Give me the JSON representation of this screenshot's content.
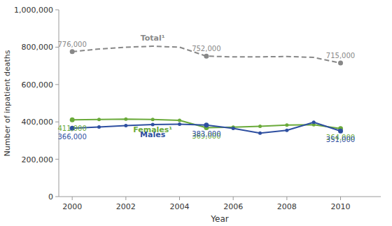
{
  "chart_data": {
    "type": "line",
    "x": [
      2000,
      2001,
      2002,
      2003,
      2004,
      2005,
      2006,
      2007,
      2008,
      2009,
      2010
    ],
    "series": [
      {
        "name": "Total¹",
        "color": "#888888",
        "line_style": "dashed",
        "values": [
          776000,
          790000,
          800000,
          805000,
          800000,
          752000,
          748000,
          748000,
          750000,
          745000,
          715000
        ],
        "value_labels": [
          "776,000",
          null,
          null,
          null,
          null,
          "752,000",
          null,
          null,
          null,
          null,
          "715,000"
        ]
      },
      {
        "name": "Females¹",
        "color": "#6aaa3a",
        "line_style": "solid",
        "marker": "circle",
        "values": [
          411000,
          413000,
          415000,
          413000,
          408000,
          369000,
          372000,
          376000,
          383000,
          385000,
          364000
        ],
        "value_labels": [
          "411,000",
          null,
          null,
          null,
          null,
          "369,000",
          null,
          null,
          null,
          null,
          "364,000"
        ]
      },
      {
        "name": "Males",
        "color": "#2e4fa0",
        "line_style": "solid",
        "marker": "circle",
        "values": [
          366000,
          373000,
          380000,
          386000,
          388000,
          383000,
          365000,
          340000,
          355000,
          398000,
          351000
        ],
        "value_labels": [
          "366,000",
          null,
          null,
          null,
          null,
          "383,000",
          null,
          null,
          null,
          null,
          "351,000"
        ]
      }
    ],
    "xlabel": "Year",
    "ylabel": "Number of inpatient deaths",
    "xlim": [
      1999.5,
      2011.5
    ],
    "xticks": [
      2000,
      2002,
      2004,
      2006,
      2008,
      2010
    ],
    "ylim": [
      0,
      1000000
    ],
    "yticks": [
      0,
      {
        "value": 200000,
        "label": "200,000"
      },
      {
        "value": 400000,
        "label": "400,000"
      },
      {
        "value": 600000,
        "label": "600,000"
      },
      {
        "value": 800000,
        "label": "800,000"
      },
      {
        "value": 1000000,
        "label": "1,000,000"
      }
    ],
    "grid": false,
    "data_labels": true
  }
}
